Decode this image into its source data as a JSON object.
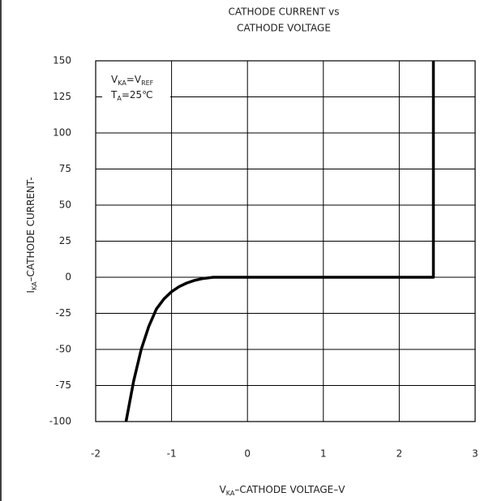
{
  "chart_data": {
    "type": "line",
    "title": [
      "CATHODE CURRENT vs",
      "CATHODE VOLTAGE"
    ],
    "xlabel": [
      "V",
      "KA",
      "–CATHODE VOLTAGE–V"
    ],
    "ylabel": [
      "I",
      "KA",
      "–CATHODE CURRENT-"
    ],
    "annotations": [
      [
        "V",
        "KA",
        "=V",
        "REF"
      ],
      [
        "T",
        "A",
        "=25℃"
      ]
    ],
    "xlim": [
      -2,
      3
    ],
    "xticks": [
      -2,
      -1,
      0,
      1,
      2,
      3
    ],
    "ylim": [
      -100,
      150
    ],
    "yticks": [
      -100,
      -75,
      -50,
      -25,
      0,
      25,
      50,
      75,
      100,
      125,
      150
    ],
    "grid": true,
    "series": [
      {
        "color": "#000000",
        "x": [
          -1.6,
          -1.5,
          -1.4,
          -1.3,
          -1.2,
          -1.1,
          -1.0,
          -0.9,
          -0.8,
          -0.7,
          -0.6,
          -0.45,
          2.45,
          2.45
        ],
        "values": [
          -100,
          -72,
          -50,
          -34,
          -22,
          -15,
          -10,
          -6.5,
          -4,
          -2.2,
          -1,
          0,
          0,
          150
        ]
      }
    ]
  }
}
